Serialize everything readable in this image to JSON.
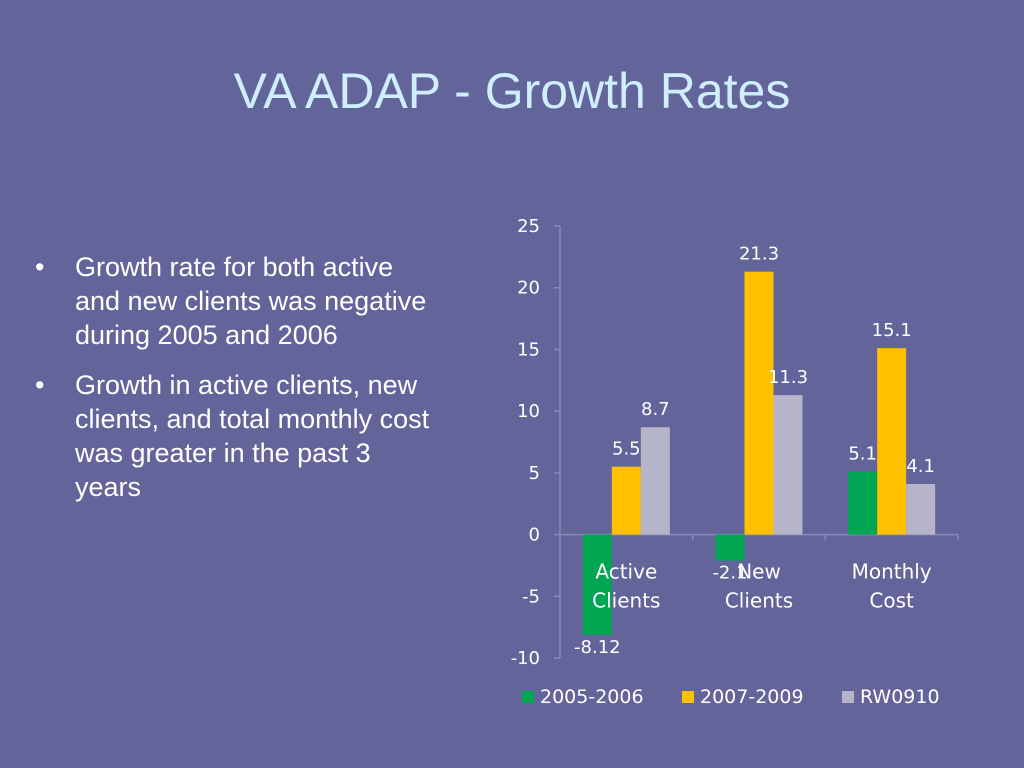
{
  "title": "VA ADAP - Growth Rates",
  "bullets": [
    "Growth rate for both active and new clients was negative during 2005 and 2006",
    "Growth in active clients, new clients, and total monthly cost was greater in the past 3 years"
  ],
  "bullet_glyph": "•",
  "colors": {
    "background": "#62649a",
    "title": "#cfeeff",
    "text": "#ffffff",
    "axis": "#8a8ab8",
    "tick_label": "#ffffff"
  },
  "chart_data": {
    "type": "bar",
    "categories": [
      [
        "Active",
        "Clients"
      ],
      [
        "New",
        "Clients"
      ],
      [
        "Monthly",
        "Cost"
      ]
    ],
    "series": [
      {
        "name": "2005-2006",
        "color": "#00a651",
        "values": [
          -8.12,
          -2.1,
          5.1
        ],
        "labels": [
          "-8.12",
          "-2.1",
          "5.1"
        ]
      },
      {
        "name": "2007-2009",
        "color": "#ffc000",
        "values": [
          5.5,
          21.3,
          15.1
        ],
        "labels": [
          "5.5",
          "21.3",
          "15.1"
        ]
      },
      {
        "name": "RW0910",
        "color": "#b6b4c8",
        "values": [
          8.7,
          11.3,
          4.1
        ],
        "labels": [
          "8.7",
          "11.3",
          "4.1"
        ]
      }
    ],
    "ylim": [
      -10,
      25
    ],
    "yticks": [
      "25",
      "20",
      "15",
      "10",
      "5",
      "0",
      "-5",
      "-10"
    ],
    "ytick_values": [
      25,
      20,
      15,
      10,
      5,
      0,
      -5,
      -10
    ],
    "grid": false,
    "legend_position": "bottom"
  }
}
